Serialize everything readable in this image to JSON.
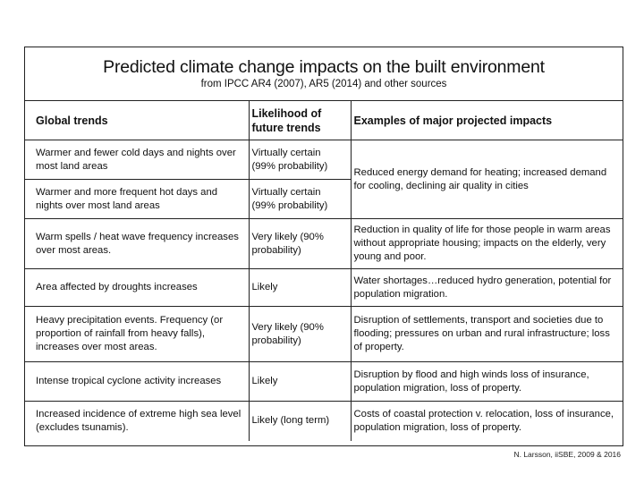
{
  "title": "Predicted climate change impacts on the built environment",
  "subtitle": "from IPCC AR4 (2007), AR5 (2014) and other sources",
  "columns": [
    "Global trends",
    "Likelihood of future trends",
    "Examples of major projected impacts"
  ],
  "rows": [
    {
      "trend": "Warmer and fewer cold days and nights over most land areas",
      "likelihood": "Virtually certain (99% probability)"
    },
    {
      "trend": "Warmer and more frequent hot days and nights over most land areas",
      "likelihood": "Virtually certain (99% probability)"
    },
    {
      "trend": "Warm spells / heat wave frequency increases over most areas.",
      "likelihood": "Very likely (90% probability)",
      "impact": "Reduction in quality of life for those people in warm areas without appropriate housing; impacts on the elderly, very young and poor."
    },
    {
      "trend": "Area affected by droughts increases",
      "likelihood": "Likely",
      "impact": "Water shortages…reduced hydro generation, potential for population migration."
    },
    {
      "trend": "Heavy precipitation events.  Frequency (or proportion of rainfall from heavy falls), increases over most areas.",
      "likelihood": "Very likely (90% probability)",
      "impact": "Disruption of settlements, transport and societies due to flooding; pressures on urban and rural infrastructure; loss of property."
    },
    {
      "trend": "Intense tropical cyclone activity increases",
      "likelihood": "Likely",
      "impact": "Disruption by flood and high winds  loss of insurance, population migration, loss of property."
    },
    {
      "trend": "Increased incidence of extreme high sea level (excludes tsunamis).",
      "likelihood": "Likely (long term)",
      "impact": "Costs of coastal protection v. relocation, loss of insurance, population migration, loss of property."
    }
  ],
  "merged_impact_rows_1_2": "Reduced energy demand for heating; increased demand for cooling, declining air quality in cities",
  "credit": "N. Larsson, iiSBE, 2009 & 2016"
}
